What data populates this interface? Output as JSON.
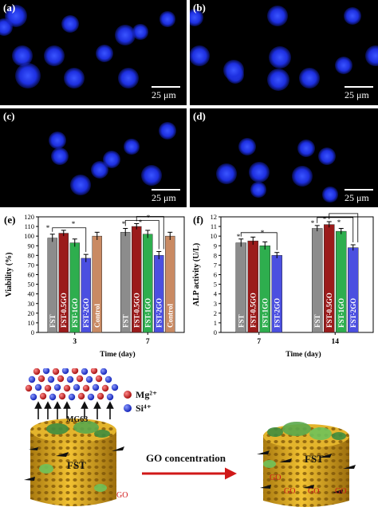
{
  "micrographs": [
    {
      "label": "(a)",
      "scale": "25 μm"
    },
    {
      "label": "(b)",
      "scale": "25 μm"
    },
    {
      "label": "(c)",
      "scale": "25 μm"
    },
    {
      "label": "(d)",
      "scale": "25 μm"
    }
  ],
  "colors": {
    "FST": "#8c8c8c",
    "FST-0.5GO": "#9b1b1b",
    "FST-1GO": "#2eae4e",
    "FST-2GO": "#4b4fe0",
    "Control": "#c98a63"
  },
  "chart_data": [
    {
      "type": "bar",
      "panel": "(e)",
      "ylabel": "Viability (%)",
      "xlabel": "Time (day)",
      "ylim": [
        0,
        120
      ],
      "yticks": [
        0,
        10,
        20,
        30,
        40,
        50,
        60,
        70,
        80,
        90,
        100,
        110,
        120
      ],
      "categories": [
        "3",
        "7"
      ],
      "series": [
        {
          "name": "FST",
          "values": [
            98,
            104
          ],
          "errors": [
            4,
            4
          ]
        },
        {
          "name": "FST-0.5GO",
          "values": [
            103,
            110
          ],
          "errors": [
            3,
            3
          ]
        },
        {
          "name": "FST-1GO",
          "values": [
            93,
            102
          ],
          "errors": [
            4,
            4
          ]
        },
        {
          "name": "FST-2GO",
          "values": [
            77,
            80
          ],
          "errors": [
            4,
            4
          ]
        },
        {
          "name": "Control",
          "values": [
            100,
            100
          ],
          "errors": [
            4,
            4
          ]
        }
      ],
      "annotations": [
        "*",
        "*",
        "*",
        "*",
        "*"
      ]
    },
    {
      "type": "bar",
      "panel": "(f)",
      "ylabel": "ALP activity (U/L)",
      "xlabel": "Time (day)",
      "ylim": [
        0,
        12
      ],
      "yticks": [
        0,
        1,
        2,
        3,
        4,
        5,
        6,
        7,
        8,
        9,
        10,
        11,
        12
      ],
      "categories": [
        "7",
        "14"
      ],
      "series": [
        {
          "name": "FST",
          "values": [
            9.3,
            10.8
          ],
          "errors": [
            0.4,
            0.3
          ]
        },
        {
          "name": "FST-0.5GO",
          "values": [
            9.5,
            11.2
          ],
          "errors": [
            0.4,
            0.3
          ]
        },
        {
          "name": "FST-1GO",
          "values": [
            9.0,
            10.5
          ],
          "errors": [
            0.4,
            0.3
          ]
        },
        {
          "name": "FST-2GO",
          "values": [
            8.0,
            8.8
          ],
          "errors": [
            0.3,
            0.3
          ]
        }
      ],
      "annotations": [
        "*",
        "*",
        "*",
        "*",
        "*"
      ]
    }
  ],
  "schematic": {
    "ion1": "Mg²⁺",
    "ion2": "Si⁴⁺",
    "cell_line": "MG63",
    "scaffold_label_left": "FST",
    "scaffold_label_right": "FST",
    "go_label": "GO",
    "arrow_label": "GO concentration",
    "ion1_color": "#c21818",
    "ion2_color": "#1c2fd6"
  }
}
